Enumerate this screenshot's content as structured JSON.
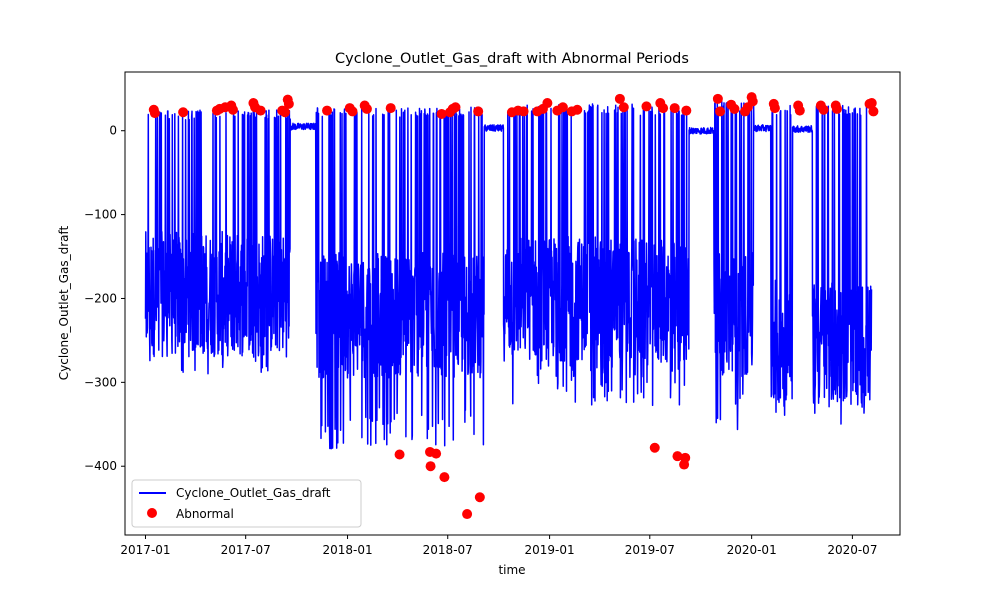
{
  "chart_data": {
    "type": "line",
    "title": "Cyclone_Outlet_Gas_draft with Abnormal Periods",
    "xlabel": "time",
    "ylabel": "Cyclone_Outlet_Gas_draft",
    "xlim": [
      "2016-11-25",
      "2020-09-25"
    ],
    "ylim": [
      -482,
      70
    ],
    "x_ticks": [
      "2017-01",
      "2017-07",
      "2018-01",
      "2018-07",
      "2019-01",
      "2019-07",
      "2020-01",
      "2020-07"
    ],
    "y_ticks": [
      0,
      -100,
      -200,
      -300,
      -400
    ],
    "grid": false,
    "legend_position": "lower-left",
    "series": [
      {
        "name": "Cyclone_Outlet_Gas_draft",
        "color": "#0000ff",
        "style": "line",
        "segments": [
          {
            "start": "2017-01-01",
            "end": "2017-09-20",
            "state": "active",
            "low": -290,
            "high": 25,
            "center": -195
          },
          {
            "start": "2017-09-20",
            "end": "2017-11-05",
            "state": "plateau",
            "level": 5
          },
          {
            "start": "2017-11-05",
            "end": "2018-09-05",
            "state": "active",
            "low": -380,
            "high": 28,
            "center": -220
          },
          {
            "start": "2018-09-05",
            "end": "2018-10-10",
            "state": "plateau",
            "level": 3
          },
          {
            "start": "2018-10-10",
            "end": "2019-06-10",
            "state": "active",
            "low": -330,
            "high": 32,
            "center": -200
          },
          {
            "start": "2019-06-10",
            "end": "2019-09-10",
            "state": "active",
            "low": -330,
            "high": 30,
            "center": -205
          },
          {
            "start": "2019-09-10",
            "end": "2019-10-25",
            "state": "plateau",
            "level": 0
          },
          {
            "start": "2019-10-25",
            "end": "2020-01-05",
            "state": "active",
            "low": -360,
            "high": 35,
            "center": -220
          },
          {
            "start": "2020-01-05",
            "end": "2020-02-05",
            "state": "plateau",
            "level": 3
          },
          {
            "start": "2020-02-05",
            "end": "2020-03-15",
            "state": "active",
            "low": -340,
            "high": 30,
            "center": -250
          },
          {
            "start": "2020-03-15",
            "end": "2020-04-20",
            "state": "plateau",
            "level": 2
          },
          {
            "start": "2020-04-20",
            "end": "2020-08-05",
            "state": "active",
            "low": -350,
            "high": 30,
            "center": -255
          }
        ]
      },
      {
        "name": "Abnormal",
        "color": "#ff0000",
        "style": "scatter",
        "points": [
          {
            "x": "2017-01-16",
            "y": 25
          },
          {
            "x": "2017-01-18",
            "y": 21
          },
          {
            "x": "2017-03-10",
            "y": 22
          },
          {
            "x": "2017-05-10",
            "y": 24
          },
          {
            "x": "2017-05-15",
            "y": 26
          },
          {
            "x": "2017-05-25",
            "y": 28
          },
          {
            "x": "2017-06-05",
            "y": 30
          },
          {
            "x": "2017-06-08",
            "y": 25
          },
          {
            "x": "2017-07-15",
            "y": 33
          },
          {
            "x": "2017-07-18",
            "y": 28
          },
          {
            "x": "2017-07-28",
            "y": 24
          },
          {
            "x": "2017-09-05",
            "y": 24
          },
          {
            "x": "2017-09-10",
            "y": 22
          },
          {
            "x": "2017-09-15",
            "y": 37
          },
          {
            "x": "2017-09-17",
            "y": 32
          },
          {
            "x": "2017-11-25",
            "y": 24
          },
          {
            "x": "2018-01-05",
            "y": 27
          },
          {
            "x": "2018-01-10",
            "y": 23
          },
          {
            "x": "2018-02-01",
            "y": 30
          },
          {
            "x": "2018-02-05",
            "y": 26
          },
          {
            "x": "2018-03-20",
            "y": 27
          },
          {
            "x": "2018-04-05",
            "y": -386
          },
          {
            "x": "2018-05-30",
            "y": -383
          },
          {
            "x": "2018-05-31",
            "y": -400
          },
          {
            "x": "2018-06-10",
            "y": -385
          },
          {
            "x": "2018-06-20",
            "y": 20
          },
          {
            "x": "2018-06-25",
            "y": -413
          },
          {
            "x": "2018-07-05",
            "y": 22
          },
          {
            "x": "2018-07-10",
            "y": 26
          },
          {
            "x": "2018-07-15",
            "y": 28
          },
          {
            "x": "2018-08-05",
            "y": -457
          },
          {
            "x": "2018-08-25",
            "y": 23
          },
          {
            "x": "2018-08-28",
            "y": -437
          },
          {
            "x": "2018-10-25",
            "y": 22
          },
          {
            "x": "2018-11-05",
            "y": 24
          },
          {
            "x": "2018-11-15",
            "y": 23
          },
          {
            "x": "2018-12-10",
            "y": 23
          },
          {
            "x": "2018-12-20",
            "y": 26
          },
          {
            "x": "2018-12-28",
            "y": 33
          },
          {
            "x": "2019-01-15",
            "y": 24
          },
          {
            "x": "2019-01-25",
            "y": 28
          },
          {
            "x": "2019-02-10",
            "y": 23
          },
          {
            "x": "2019-02-20",
            "y": 25
          },
          {
            "x": "2019-05-08",
            "y": 38
          },
          {
            "x": "2019-05-15",
            "y": 28
          },
          {
            "x": "2019-06-25",
            "y": 29
          },
          {
            "x": "2019-07-10",
            "y": -378
          },
          {
            "x": "2019-07-20",
            "y": 33
          },
          {
            "x": "2019-07-25",
            "y": 27
          },
          {
            "x": "2019-08-15",
            "y": 27
          },
          {
            "x": "2019-08-20",
            "y": -388
          },
          {
            "x": "2019-09-01",
            "y": -398
          },
          {
            "x": "2019-09-03",
            "y": -390
          },
          {
            "x": "2019-09-05",
            "y": 24
          },
          {
            "x": "2019-11-01",
            "y": 38
          },
          {
            "x": "2019-11-05",
            "y": 23
          },
          {
            "x": "2019-11-25",
            "y": 31
          },
          {
            "x": "2019-12-01",
            "y": 26
          },
          {
            "x": "2019-12-20",
            "y": 23
          },
          {
            "x": "2019-12-25",
            "y": 28
          },
          {
            "x": "2020-01-01",
            "y": 40
          },
          {
            "x": "2020-01-03",
            "y": 35
          },
          {
            "x": "2020-02-10",
            "y": 32
          },
          {
            "x": "2020-02-12",
            "y": 27
          },
          {
            "x": "2020-03-25",
            "y": 30
          },
          {
            "x": "2020-03-28",
            "y": 24
          },
          {
            "x": "2020-05-05",
            "y": 30
          },
          {
            "x": "2020-05-10",
            "y": 25
          },
          {
            "x": "2020-06-01",
            "y": 30
          },
          {
            "x": "2020-06-03",
            "y": 26
          },
          {
            "x": "2020-08-01",
            "y": 32
          },
          {
            "x": "2020-08-05",
            "y": 33
          },
          {
            "x": "2020-08-08",
            "y": 23
          }
        ]
      }
    ],
    "legend": [
      {
        "label": "Cyclone_Outlet_Gas_draft",
        "kind": "line",
        "color": "#0000ff"
      },
      {
        "label": "Abnormal",
        "kind": "marker",
        "color": "#ff0000"
      }
    ]
  }
}
